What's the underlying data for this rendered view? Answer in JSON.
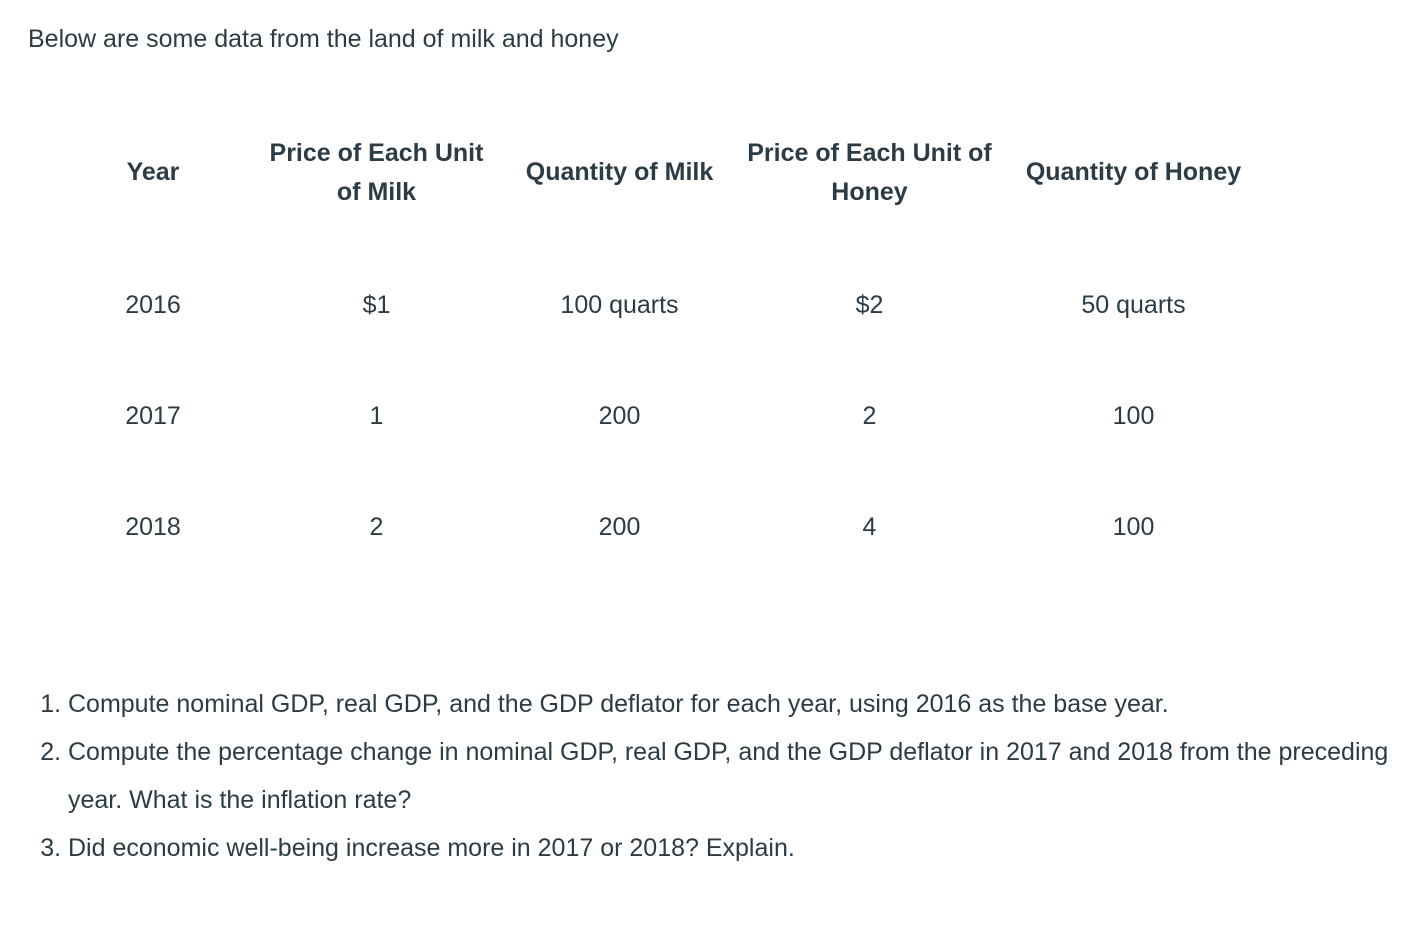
{
  "page": {
    "title": "Below are some data from the land of milk and honey",
    "text_color": "#2d3b45",
    "background_color": "#ffffff"
  },
  "table": {
    "columns": [
      "Year",
      "Price of Each Unit of Milk",
      "Quantity of Milk",
      "Price of Each Unit of Honey",
      "Quantity of Honey"
    ],
    "rows": [
      [
        "2016",
        "$1",
        "100 quarts",
        "$2",
        "50 quarts"
      ],
      [
        "2017",
        "1",
        "200",
        "2",
        "100"
      ],
      [
        "2018",
        "2",
        "200",
        "4",
        "100"
      ]
    ]
  },
  "questions": [
    "Compute nominal GDP, real GDP, and the GDP deflator for each year, using 2016 as the base year.",
    "Compute the percentage change in nominal GDP, real GDP, and the GDP deflator in 2017 and 2018 from the preceding year. What is the inflation rate?",
    "Did economic well-being increase more in 2017 or 2018? Explain."
  ]
}
